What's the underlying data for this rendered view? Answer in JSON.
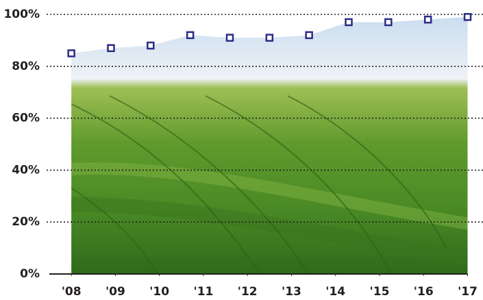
{
  "chart_data": {
    "type": "area",
    "x": [
      2008,
      2008.9,
      2009.8,
      2010.7,
      2011.6,
      2012.5,
      2013.4,
      2014.3,
      2015.2,
      2016.1,
      2017
    ],
    "values": [
      85,
      87,
      88,
      92,
      91,
      91,
      92,
      97,
      97,
      98,
      99
    ],
    "color": "#2b2b86",
    "xlim": [
      2007.5,
      2017.35
    ],
    "xticks": [
      {
        "value": 2008,
        "label": "'08"
      },
      {
        "value": 2009,
        "label": "'09"
      },
      {
        "value": 2010,
        "label": "'10"
      },
      {
        "value": 2011,
        "label": "'11"
      },
      {
        "value": 2012,
        "label": "'12"
      },
      {
        "value": 2013,
        "label": "'13"
      },
      {
        "value": 2014,
        "label": "'14"
      },
      {
        "value": 2015,
        "label": "'15"
      },
      {
        "value": 2016,
        "label": "'16"
      },
      {
        "value": 2017,
        "label": "'17"
      }
    ],
    "ylim": [
      0,
      100
    ],
    "yticks": [
      {
        "value": 0,
        "label": "0%"
      },
      {
        "value": 20,
        "label": "20%"
      },
      {
        "value": 40,
        "label": "40%"
      },
      {
        "value": 60,
        "label": "60%"
      },
      {
        "value": 80,
        "label": "80%"
      },
      {
        "value": 100,
        "label": "100%"
      }
    ],
    "grid": true
  }
}
